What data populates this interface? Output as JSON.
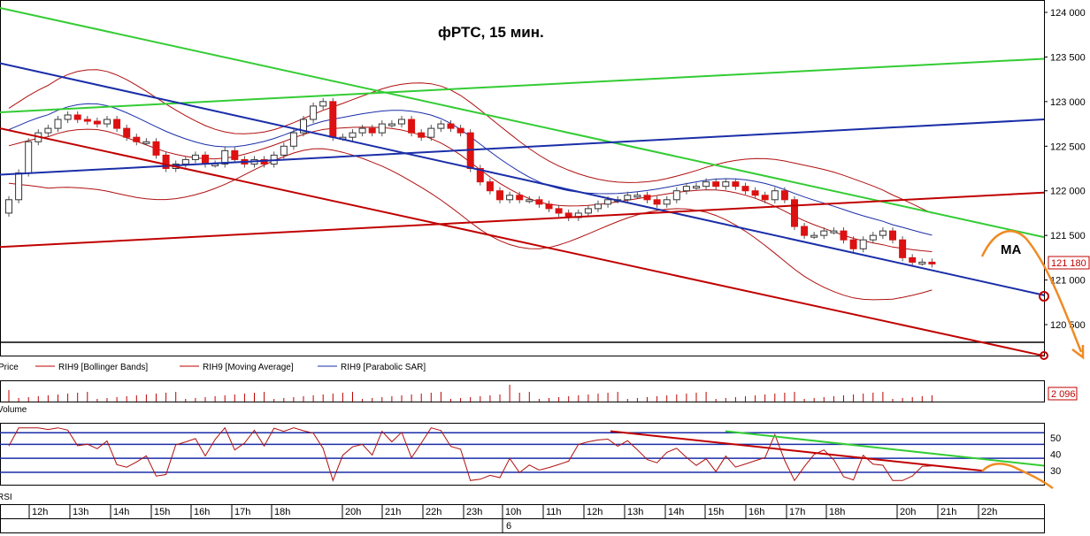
{
  "chart_data": {
    "type": "candlestick",
    "title": "фРТС,  15 мин.",
    "annotation": "MA",
    "last_price_label": "121 180",
    "price_axis": {
      "ticks": [
        "124 000",
        "123 500",
        "123 000",
        "122 500",
        "122 000",
        "121 500",
        "121 000",
        "120 500"
      ],
      "ylim": [
        120200,
        124100
      ]
    },
    "legend": [
      {
        "label": "Price",
        "color": "#000000"
      },
      {
        "label": "RIH9 [Bollinger Bands]",
        "color": "#c00000"
      },
      {
        "label": "RIH9 [Moving Average]",
        "color": "#c00000"
      },
      {
        "label": "RIH9 [Parabolic SAR]",
        "color": "#1a2ea8"
      }
    ],
    "volume_pane": {
      "name": "Volume",
      "last_label": "2 096"
    },
    "rsi_pane": {
      "name": "RSI",
      "ticks": [
        "50",
        "40",
        "30"
      ],
      "ylim": [
        22,
        58
      ],
      "levels": [
        53,
        46,
        37.5,
        29
      ]
    },
    "time_axis": {
      "labels": [
        "12h",
        "13h",
        "14h",
        "15h",
        "16h",
        "17h",
        "18h",
        "20h",
        "21h",
        "22h",
        "23h",
        "10h",
        "11h",
        "12h",
        "13h",
        "14h",
        "15h",
        "16h",
        "17h",
        "18h",
        "20h",
        "21h",
        "22h"
      ],
      "date_label": "6"
    },
    "candles_close": [
      121900,
      122200,
      122550,
      122650,
      122700,
      122800,
      122850,
      122800,
      122780,
      122750,
      122800,
      122700,
      122600,
      122550,
      122550,
      122400,
      122250,
      122300,
      122350,
      122400,
      122300,
      122300,
      122450,
      122350,
      122300,
      122350,
      122300,
      122400,
      122500,
      122650,
      122800,
      122950,
      123000,
      122600,
      122600,
      122650,
      122700,
      122650,
      122750,
      122750,
      122800,
      122650,
      122600,
      122700,
      122750,
      122700,
      122650,
      122250,
      122100,
      122000,
      121900,
      121950,
      121900,
      121900,
      121850,
      121800,
      121750,
      121700,
      121750,
      121800,
      121850,
      121900,
      121900,
      121950,
      121950,
      121900,
      121850,
      121900,
      122000,
      122050,
      122050,
      122100,
      122050,
      122100,
      122050,
      122000,
      121950,
      121900,
      122000,
      121900,
      121600,
      121500,
      121500,
      121550,
      121550,
      121450,
      121350,
      121450,
      121500,
      121550,
      121450,
      121250,
      121200,
      121200,
      121180
    ],
    "trend_lines": [
      {
        "color": "#33cc33",
        "from": [
          0,
          124050
        ],
        "to": [
          1180,
          121480
        ]
      },
      {
        "color": "#33cc33",
        "from": [
          0,
          122880
        ],
        "to": [
          1180,
          123480
        ]
      },
      {
        "color": "#1a2ea8",
        "from": [
          0,
          123430
        ],
        "to": [
          1180,
          120830
        ]
      },
      {
        "color": "#1a2ea8",
        "from": [
          0,
          122180
        ],
        "to": [
          1180,
          122800
        ]
      },
      {
        "color": "#c00000",
        "from": [
          0,
          122700
        ],
        "to": [
          1180,
          120150
        ]
      },
      {
        "color": "#c00000",
        "from": [
          0,
          121370
        ],
        "to": [
          1180,
          121980
        ]
      }
    ],
    "rsi_trend_lines": [
      {
        "color": "#c00000",
        "from": [
          690,
          54
        ],
        "to": [
          1110,
          30
        ]
      },
      {
        "color": "#33cc33",
        "from": [
          820,
          54
        ],
        "to": [
          1180,
          33
        ]
      }
    ]
  }
}
